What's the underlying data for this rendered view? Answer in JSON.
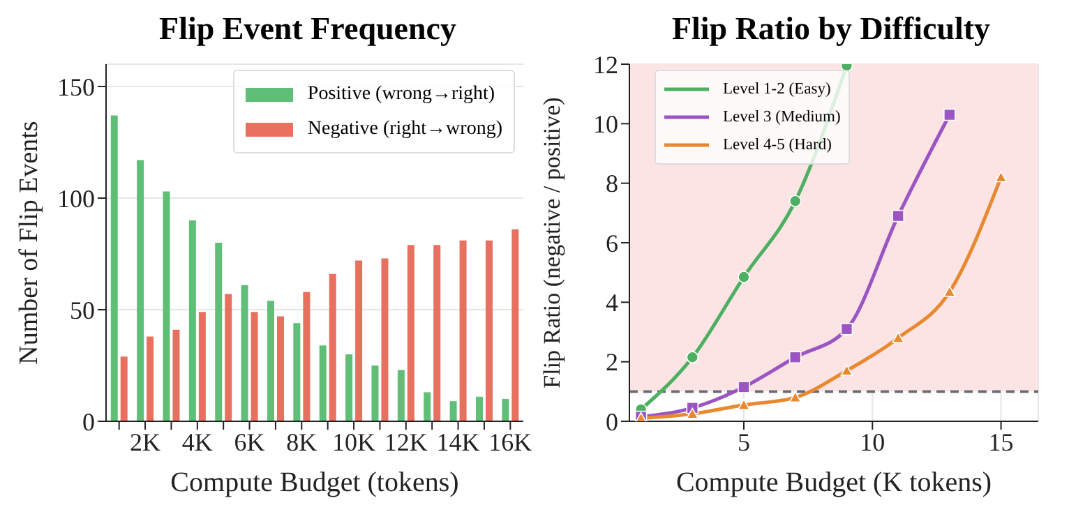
{
  "chart_data": [
    {
      "type": "bar",
      "title": "Flip Event Frequency",
      "xlabel": "Compute Budget (tokens)",
      "ylabel": "Number of Flip Events",
      "categories": [
        null,
        "2K",
        null,
        "4K",
        null,
        "6K",
        null,
        "8K",
        null,
        "10K",
        null,
        "12K",
        null,
        "14K",
        null,
        "16K"
      ],
      "series": [
        {
          "name": "Positive (wrong→right)",
          "color": "#5fbf77",
          "values": [
            137,
            117,
            103,
            90,
            80,
            61,
            54,
            44,
            34,
            30,
            25,
            23,
            13,
            9,
            11,
            10
          ]
        },
        {
          "name": "Negative (right→wrong)",
          "color": "#e8705f",
          "values": [
            29,
            38,
            41,
            49,
            57,
            49,
            47,
            58,
            66,
            72,
            73,
            79,
            79,
            81,
            81,
            86
          ]
        }
      ],
      "ylim": [
        0,
        160
      ],
      "yticks": [
        0,
        50,
        100,
        150
      ],
      "grid": "y",
      "legend": "top right"
    },
    {
      "type": "line",
      "title": "Flip Ratio by Difficulty",
      "xlabel": "Compute Budget (K tokens)",
      "ylabel": "Flip Ratio (negative / positive)",
      "series": [
        {
          "name": "Level 1-2 (Easy)",
          "color": "#4daf62",
          "marker": "circle",
          "x": [
            1,
            3,
            5,
            7,
            9
          ],
          "values": [
            0.4,
            2.15,
            4.85,
            7.4,
            11.95
          ]
        },
        {
          "name": "Level 3 (Medium)",
          "color": "#9b55c3",
          "marker": "square",
          "x": [
            1,
            3,
            5,
            7,
            9,
            11,
            13
          ],
          "values": [
            0.15,
            0.45,
            1.15,
            2.15,
            3.1,
            6.9,
            10.3
          ]
        },
        {
          "name": "Level 4-5 (Hard)",
          "color": "#e8892f",
          "marker": "triangle",
          "x": [
            1,
            3,
            5,
            7,
            9,
            11,
            13,
            15
          ],
          "values": [
            0.1,
            0.25,
            0.55,
            0.8,
            1.7,
            2.8,
            4.35,
            8.2
          ]
        }
      ],
      "xlim": [
        0.55,
        16.45
      ],
      "xticks": [
        5,
        10,
        15
      ],
      "ylim": [
        0,
        12
      ],
      "yticks": [
        0,
        2,
        4,
        6,
        8,
        10,
        12
      ],
      "grid": true,
      "legend": "top left",
      "ref_lines": [
        {
          "axis": "y",
          "value": 1,
          "color": "#6b6b78",
          "line_style": "dashed"
        }
      ],
      "bands": [
        {
          "axis": "y",
          "from": 1,
          "to": 12,
          "color": "#fde4e4"
        }
      ]
    }
  ]
}
